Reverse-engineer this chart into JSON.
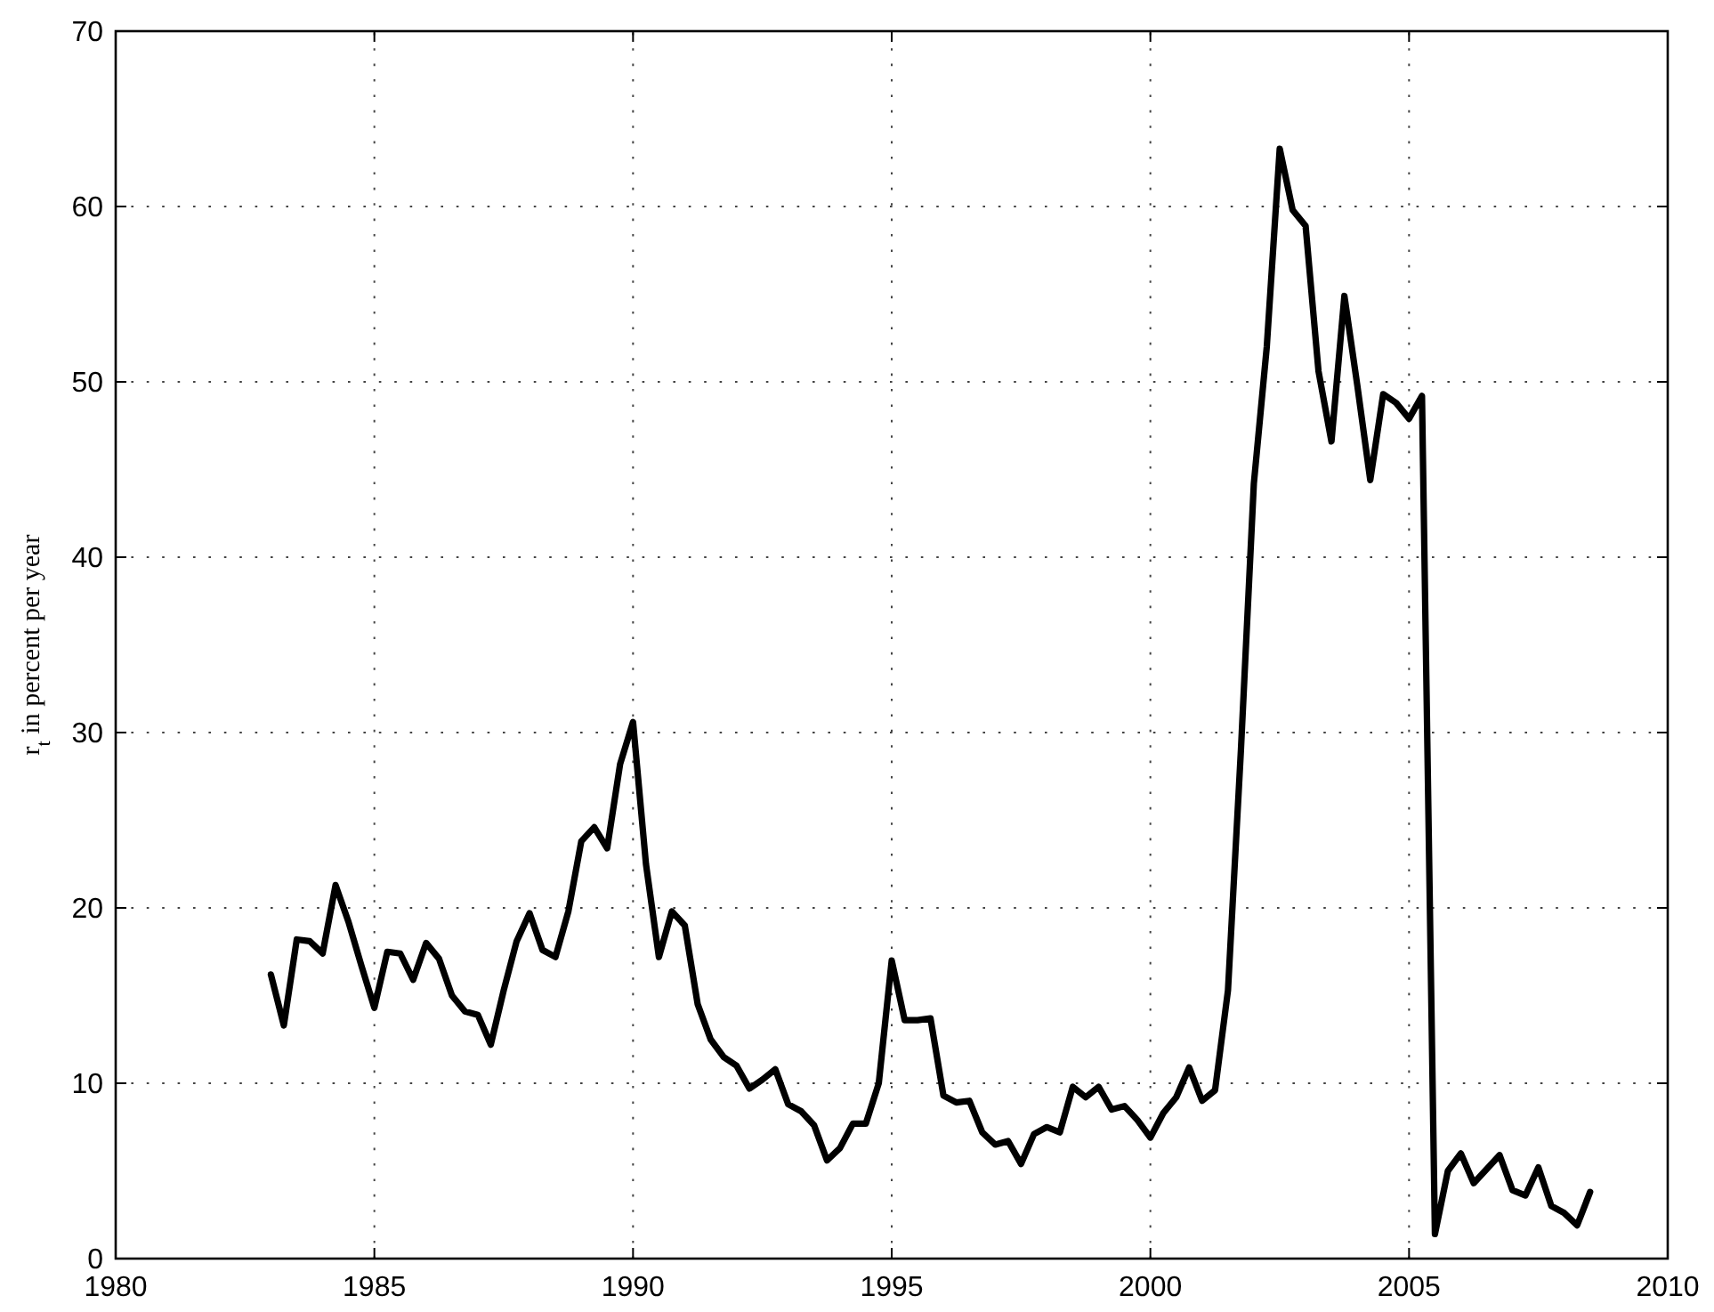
{
  "chart_data": {
    "type": "line",
    "ylabel": "r$_{t}$ in percent per year",
    "x": [
      1983,
      1983.25,
      1983.5,
      1983.75,
      1984,
      1984.25,
      1984.5,
      1984.75,
      1985,
      1985.25,
      1985.5,
      1985.75,
      1986,
      1986.25,
      1986.5,
      1986.75,
      1987,
      1987.25,
      1987.5,
      1987.75,
      1988,
      1988.25,
      1988.5,
      1988.75,
      1989,
      1989.25,
      1989.5,
      1989.75,
      1990,
      1990.25,
      1990.5,
      1990.75,
      1991,
      1991.25,
      1991.5,
      1991.75,
      1992,
      1992.25,
      1992.5,
      1992.75,
      1993,
      1993.25,
      1993.5,
      1993.75,
      1994,
      1994.25,
      1994.5,
      1994.75,
      1995,
      1995.25,
      1995.5,
      1995.75,
      1996,
      1996.25,
      1996.5,
      1996.75,
      1997,
      1997.25,
      1997.5,
      1997.75,
      1998,
      1998.25,
      1998.5,
      1998.75,
      1999,
      1999.25,
      1999.5,
      1999.75,
      2000,
      2000.25,
      2000.5,
      2000.75,
      2001,
      2001.25,
      2001.5,
      2001.75,
      2002,
      2002.25,
      2002.5,
      2002.75,
      2003,
      2003.25,
      2003.5,
      2003.75,
      2004,
      2004.25,
      2004.5,
      2004.75,
      2005,
      2005.25,
      2005.5,
      2005.75,
      2006,
      2006.25,
      2006.5,
      2006.75,
      2007,
      2007.25,
      2007.5,
      2007.75,
      2008,
      2008.25,
      2008.5
    ],
    "series": [
      {
        "color": "#000000",
        "values": [
          16.2,
          13.3,
          18.2,
          18.1,
          17.4,
          21.3,
          19.2,
          16.7,
          14.3,
          17.5,
          17.4,
          15.9,
          18.0,
          17.1,
          15.0,
          14.1,
          13.9,
          12.2,
          15.3,
          18.1,
          19.7,
          17.6,
          17.2,
          19.8,
          23.8,
          24.6,
          23.4,
          28.2,
          30.6,
          22.5,
          17.2,
          19.8,
          19.0,
          14.5,
          12.5,
          11.5,
          11.0,
          9.7,
          10.2,
          10.8,
          8.8,
          8.4,
          7.6,
          5.6,
          6.3,
          7.7,
          7.7,
          10.0,
          17.0,
          13.6,
          13.6,
          13.7,
          9.3,
          8.9,
          9.0,
          7.2,
          6.5,
          6.7,
          5.4,
          7.1,
          7.5,
          7.2,
          9.8,
          9.2,
          9.8,
          8.5,
          8.7,
          7.9,
          6.9,
          8.3,
          9.2,
          10.9,
          9.0,
          9.6,
          15.3,
          29.0,
          44.2,
          52.0,
          63.3,
          59.8,
          58.9,
          50.6,
          46.6,
          54.9,
          49.8,
          44.4,
          49.3,
          48.8,
          47.9,
          49.2,
          1.4,
          5.0,
          6.0,
          4.3,
          5.1,
          5.9,
          3.9,
          3.6,
          5.2,
          3.0,
          2.6,
          1.9,
          3.8
        ]
      }
    ],
    "xlim": [
      1980,
      2010
    ],
    "xticks": [
      1980,
      1985,
      1990,
      1995,
      2000,
      2005,
      2010
    ],
    "ylim": [
      0,
      70
    ],
    "yticks": [
      0,
      10,
      20,
      30,
      40,
      50,
      60,
      70
    ],
    "grid": true,
    "line_style": "solid"
  }
}
